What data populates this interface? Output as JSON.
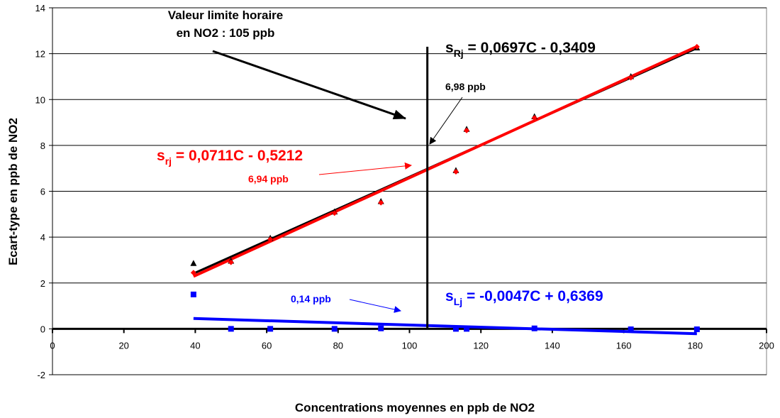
{
  "chart_data": {
    "type": "scatter",
    "xlabel": "Concentrations moyennes en ppb de NO2",
    "ylabel": "Ecart-type en ppb de NO2",
    "xlim": [
      0,
      200
    ],
    "ylim": [
      -2,
      14
    ],
    "x_ticks": [
      "0",
      "20",
      "40",
      "60",
      "80",
      "100",
      "120",
      "140",
      "160",
      "180",
      "200"
    ],
    "y_ticks": [
      "-2",
      "0",
      "2",
      "4",
      "6",
      "8",
      "10",
      "12",
      "14"
    ],
    "grid": "horizontal",
    "series": [
      {
        "color": "#000000",
        "marker": "triangle",
        "points": [
          [
            39.5,
            2.85
          ],
          [
            50,
            2.95
          ],
          [
            61,
            3.95
          ],
          [
            79,
            5.1
          ],
          [
            92,
            5.55
          ],
          [
            113,
            6.9
          ],
          [
            116,
            8.7
          ],
          [
            135,
            9.25
          ],
          [
            162,
            11.0
          ],
          [
            180.5,
            12.25
          ]
        ],
        "trend": {
          "label": "s_Rj = 0,0697C - 0,3409",
          "slope": 0.0697,
          "intercept": -0.3409,
          "x_range": [
            39.5,
            180.5
          ]
        }
      },
      {
        "color": "#ff0000",
        "marker": "diamond",
        "points": [
          [
            39.5,
            2.45
          ],
          [
            50,
            2.9
          ],
          [
            61,
            3.9
          ],
          [
            79,
            5.05
          ],
          [
            92,
            5.5
          ],
          [
            113,
            6.85
          ],
          [
            116,
            8.65
          ],
          [
            135,
            9.2
          ],
          [
            162,
            10.95
          ],
          [
            180.5,
            12.3
          ]
        ],
        "trend": {
          "label": "s_rj = 0,0711C - 0,5212",
          "slope": 0.0711,
          "intercept": -0.5212,
          "x_range": [
            39.5,
            180.5
          ]
        }
      },
      {
        "color": "#0000ff",
        "marker": "square",
        "points": [
          [
            39.5,
            1.5
          ],
          [
            50,
            0.0
          ],
          [
            61,
            0.0
          ],
          [
            79,
            0.0
          ],
          [
            92,
            0.02
          ],
          [
            113,
            0.0
          ],
          [
            116,
            0.0
          ],
          [
            135,
            0.02
          ],
          [
            162,
            -0.02
          ],
          [
            180.5,
            -0.02
          ]
        ],
        "trend": {
          "label": "s_Lj = -0,0047C + 0,6369",
          "slope": -0.0047,
          "intercept": 0.6369,
          "x_range": [
            39.5,
            180.5
          ]
        }
      }
    ],
    "limit_line": {
      "x": 105,
      "y_range": [
        0,
        12.3
      ],
      "color": "#000000"
    },
    "annotations": {
      "limit": {
        "line1": "Valeur limite horaire",
        "line2": "en NO2 : 105 ppb",
        "color": "#000000"
      },
      "eq_R": {
        "main": "s",
        "sub": "Rj",
        "rest": " = 0,0697C - 0,3409",
        "color": "#000000"
      },
      "eq_r": {
        "main": "s",
        "sub": "rj",
        "rest": " = 0,0711C - 0,5212",
        "color": "#ff0000"
      },
      "eq_L": {
        "main": "s",
        "sub": "Lj",
        "rest": " = -0,0047C + 0,6369",
        "color": "#0000ff"
      },
      "val_R": {
        "text": "6,98 ppb",
        "color": "#000000"
      },
      "val_r": {
        "text": "6,94 ppb",
        "color": "#ff0000"
      },
      "val_L": {
        "text": "0,14 ppb",
        "color": "#0000ff"
      }
    }
  }
}
